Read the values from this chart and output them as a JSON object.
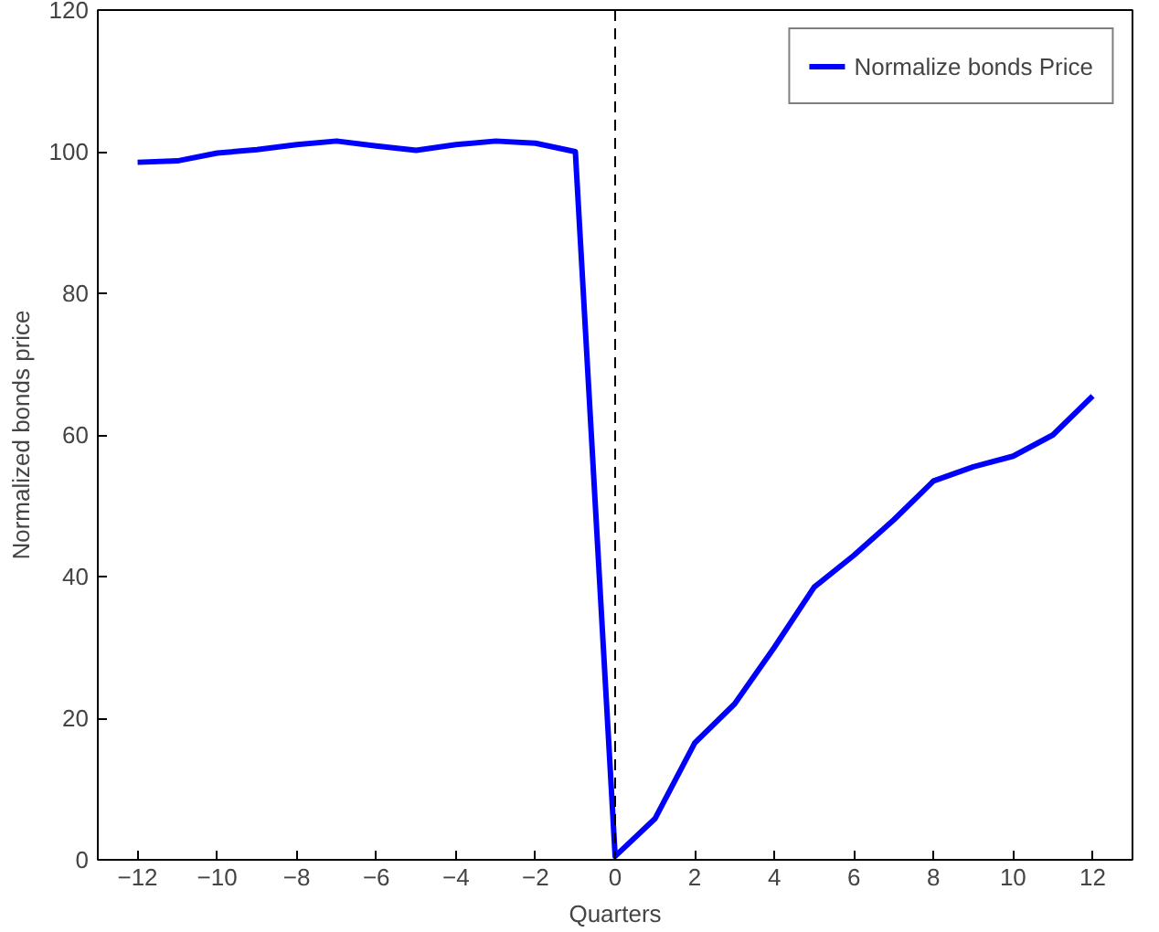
{
  "chart_data": {
    "type": "line",
    "xlabel": "Quarters",
    "ylabel": "Normalized bonds price",
    "x": [
      -12,
      -11,
      -10,
      -9,
      -8,
      -7,
      -6,
      -5,
      -4,
      -3,
      -2,
      -1,
      0,
      1,
      2,
      3,
      4,
      5,
      6,
      7,
      8,
      9,
      10,
      11,
      12
    ],
    "series": [
      {
        "name": "Normalize bonds Price",
        "color": "#0000ff",
        "values": [
          98.5,
          98.7,
          99.8,
          100.3,
          101,
          101.5,
          100.8,
          100.2,
          101,
          101.5,
          101.2,
          100,
          0.5,
          5.8,
          16.5,
          22,
          30,
          38.5,
          43,
          48,
          53.5,
          55.5,
          57,
          60,
          65.5
        ]
      }
    ],
    "xlim": [
      -13,
      13
    ],
    "xticks": [
      -12,
      -10,
      -8,
      -6,
      -4,
      -2,
      0,
      2,
      4,
      6,
      8,
      10,
      12
    ],
    "ylim": [
      0,
      120
    ],
    "yticks": [
      0,
      20,
      40,
      60,
      80,
      100,
      120
    ],
    "ref_lines": [
      {
        "axis": "x",
        "value": 0,
        "color": "#000000",
        "line_style": "dashed"
      }
    ],
    "legend": "top right",
    "grid": false,
    "marker": "none",
    "line_style": "solid"
  }
}
